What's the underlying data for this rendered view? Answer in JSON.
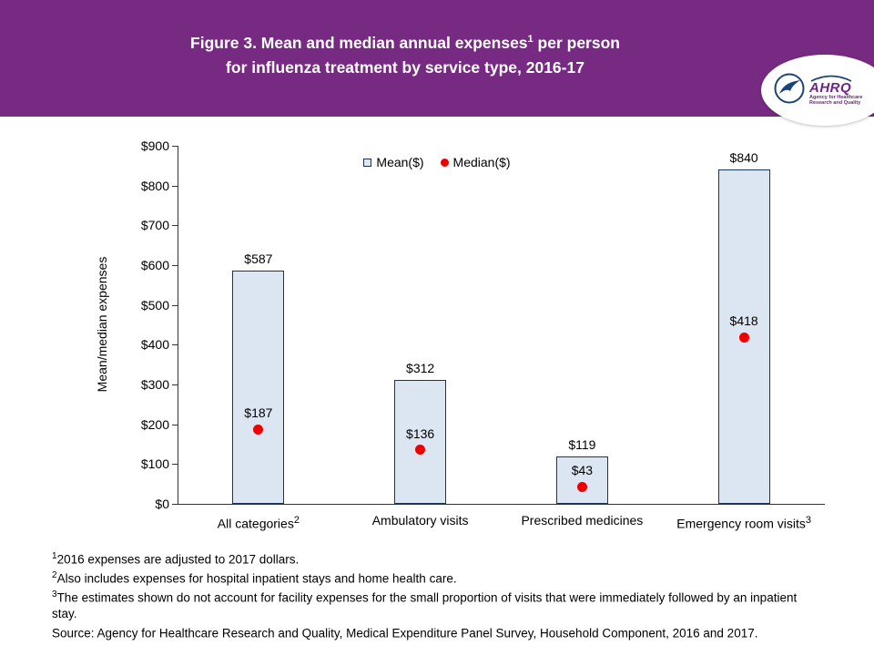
{
  "header": {
    "title": {
      "line1_pre": "Figure 3. Mean and median annual expenses",
      "line1_sup": "1",
      "line1_post": " per person",
      "line2": "for influenza treatment by service type, 2016-17"
    },
    "logo": {
      "name": "AHRQ",
      "tagline_line1": "Agency for Healthcare",
      "tagline_line2": "Research and Quality"
    }
  },
  "chart_data": {
    "type": "bar",
    "title": "Figure 3. Mean and median annual expenses per person for influenza treatment by service type, 2016-17",
    "xlabel": "",
    "ylabel": "Mean/median expenses",
    "ylim": [
      0,
      900
    ],
    "ytick_step": 100,
    "ytick_prefix": "$",
    "value_label_prefix": "$",
    "grid": false,
    "legend_position": "top-center",
    "categories": [
      "All categories",
      "Ambulatory visits",
      "Prescribed medicines",
      "Emergency room visits"
    ],
    "category_sups": [
      "2",
      "",
      "",
      "3"
    ],
    "series": [
      {
        "name": "Mean($)",
        "marker": "bar",
        "values": [
          587,
          312,
          119,
          840
        ],
        "color": "#dce6f2",
        "border": "#17365d"
      },
      {
        "name": "Median($)",
        "marker": "point",
        "values": [
          187,
          136,
          43,
          418
        ],
        "color": "#ee0000"
      }
    ]
  },
  "footnotes": [
    {
      "sup": "1",
      "text": "2016 expenses are adjusted to 2017 dollars."
    },
    {
      "sup": "2",
      "text": "Also includes expenses for hospital inpatient stays and home health care."
    },
    {
      "sup": "3",
      "text": "The estimates shown do not account for facility expenses for the small proportion of visits that were immediately followed by an inpatient stay."
    },
    {
      "sup": "",
      "text": "Source: Agency for Healthcare Research and Quality, Medical Expenditure Panel Survey, Household Component, 2016 and 2017."
    }
  ],
  "colors": {
    "banner": "#772a82",
    "bar_fill": "#dce6f2",
    "bar_border": "#17365d",
    "median_red": "#ee0000"
  }
}
